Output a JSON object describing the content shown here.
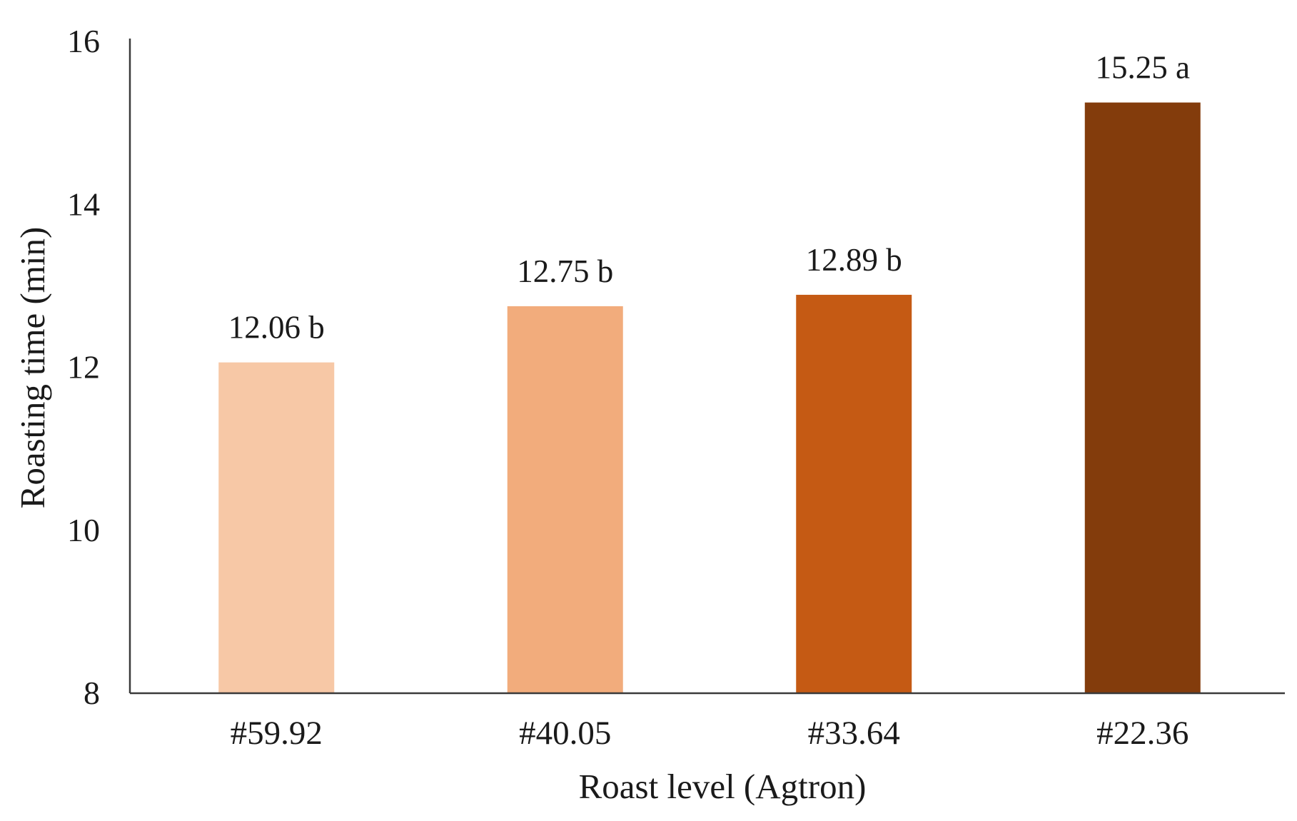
{
  "chart_data": {
    "type": "bar",
    "categories": [
      "#59.92",
      "#40.05",
      "#33.64",
      "#22.36"
    ],
    "values": [
      12.06,
      12.75,
      12.89,
      15.25
    ],
    "data_labels": [
      "12.06 b",
      "12.75 b",
      "12.89 b",
      "15.25 a"
    ],
    "bar_colors": [
      "#f7c8a6",
      "#f2ac7c",
      "#c55a14",
      "#833c0c"
    ],
    "title": "",
    "xlabel": "Roast level (Agtron)",
    "ylabel": "Roasting time (min)",
    "ylim": [
      8,
      16
    ],
    "yticks": [
      "8",
      "10",
      "12",
      "14",
      "16"
    ],
    "grid": false,
    "legend": "none"
  },
  "colors": {
    "axis": "#3a3a3a",
    "text": "#1a1a1a",
    "background": "#ffffff"
  }
}
